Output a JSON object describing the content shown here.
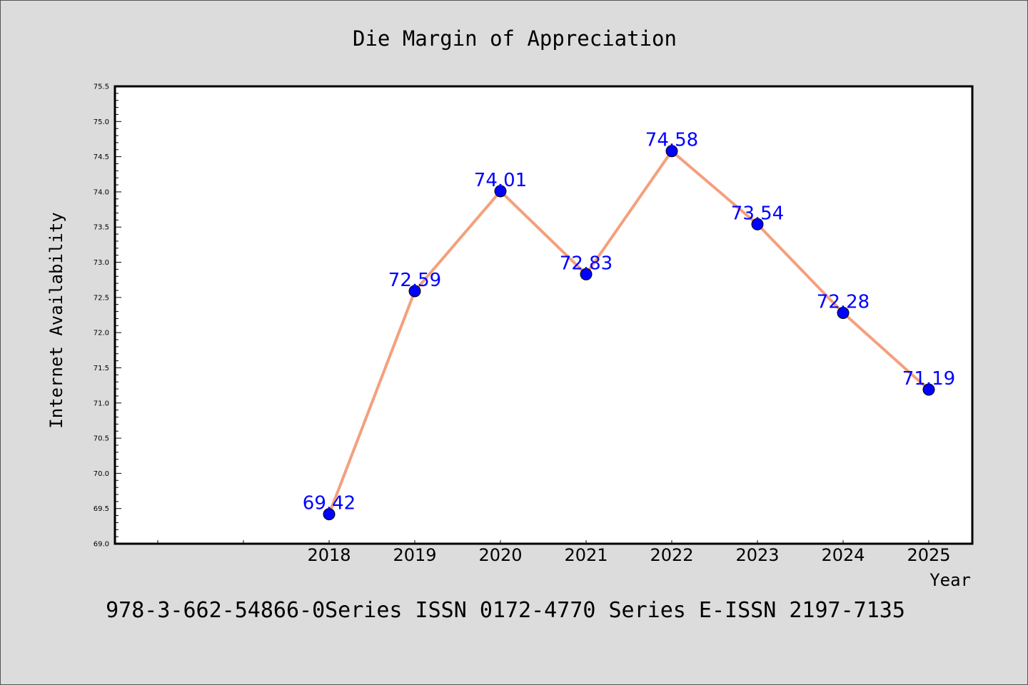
{
  "chart_data": {
    "type": "line",
    "title": "Die Margin of Appreciation",
    "xlabel": "Year",
    "ylabel": "Internet Availability",
    "footer": "978-3-662-54866-0Series ISSN 0172-4770 Series E-ISSN 2197-7135",
    "categories": [
      "2018",
      "2019",
      "2020",
      "2021",
      "2022",
      "2023",
      "2024",
      "2025"
    ],
    "series": [
      {
        "values": [
          69.42,
          72.59,
          74.01,
          72.83,
          74.58,
          73.54,
          72.28,
          71.19
        ],
        "data_labels": [
          "69.42",
          "72.59",
          "74.01",
          "72.83",
          "74.58",
          "73.54",
          "72.28",
          "71.19"
        ],
        "line_color": "#f4a07c",
        "marker_color": "#0000ff",
        "label_color": "#0000ff"
      }
    ],
    "ylim": [
      69.0,
      75.5
    ],
    "yticks": [
      "69.0",
      "69.5",
      "70.0",
      "70.5",
      "71.0",
      "71.5",
      "72.0",
      "72.5",
      "73.0",
      "73.5",
      "74.0",
      "74.5",
      "75.0",
      "75.5"
    ],
    "grid": false,
    "legend": "none",
    "background_color": "#dcdcdc",
    "plot_background_color": "#ffffff"
  }
}
